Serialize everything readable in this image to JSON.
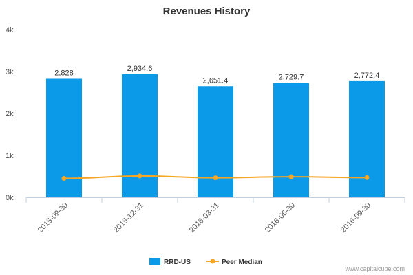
{
  "chart_data": {
    "type": "bar",
    "title": "Revenues History",
    "categories": [
      "2015-09-30",
      "2015-12-31",
      "2016-03-31",
      "2016-06-30",
      "2016-09-30"
    ],
    "series": [
      {
        "name": "RRD-US",
        "type": "bar",
        "values": [
          2828,
          2934.6,
          2651.4,
          2729.7,
          2772.4
        ],
        "labels": [
          "2,828",
          "2,934.6",
          "2,651.4",
          "2,729.7",
          "2,772.4"
        ],
        "color": "#0a9ae8"
      },
      {
        "name": "Peer Median",
        "type": "line",
        "values": [
          450,
          510,
          465,
          490,
          470
        ],
        "color": "#f5a623"
      }
    ],
    "ylim": [
      0,
      4000
    ],
    "yticks": [
      0,
      1000,
      2000,
      3000,
      4000
    ],
    "ytick_labels": [
      "0k",
      "1k",
      "2k",
      "3k",
      "4k"
    ],
    "grid": false,
    "legend_position": "bottom"
  },
  "credit": "www.capitalcube.com"
}
